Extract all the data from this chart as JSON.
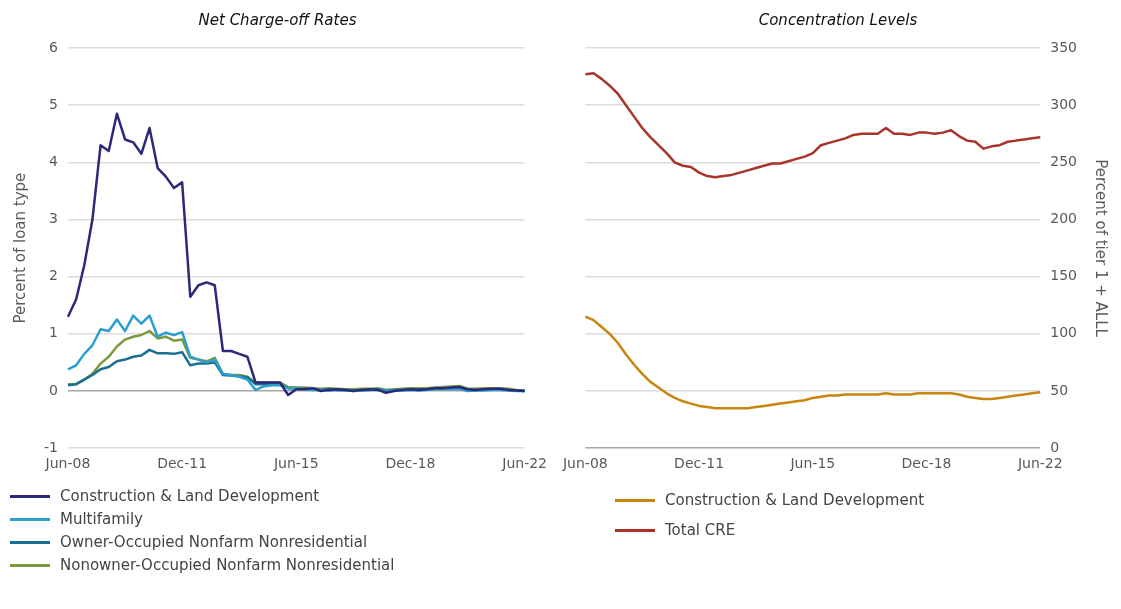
{
  "chart_data": [
    {
      "type": "line",
      "title": "Net Charge-off Rates",
      "ylabel": "Percent of loan type",
      "categories": [
        "Jun-08",
        null,
        null,
        null,
        null,
        null,
        null,
        null,
        null,
        null,
        null,
        null,
        null,
        null,
        "Dec-11",
        null,
        null,
        null,
        null,
        null,
        null,
        null,
        null,
        null,
        null,
        null,
        null,
        null,
        "Jun-15",
        null,
        null,
        null,
        null,
        null,
        null,
        null,
        null,
        null,
        null,
        null,
        null,
        null,
        "Dec-18",
        null,
        null,
        null,
        null,
        null,
        null,
        null,
        null,
        null,
        null,
        null,
        null,
        null,
        "Jun-22"
      ],
      "ylim": [
        -1,
        6
      ],
      "yticks": [
        -1,
        0,
        1,
        2,
        3,
        4,
        5,
        6
      ],
      "grid": "y",
      "legend": "bottom",
      "marker": "none",
      "series": [
        {
          "name": "Construction & Land Development",
          "color": "#2b2a7a",
          "values": [
            1.3,
            1.6,
            2.2,
            3.0,
            4.3,
            4.2,
            4.85,
            4.4,
            4.35,
            4.15,
            4.6,
            3.9,
            3.75,
            3.55,
            3.65,
            1.65,
            1.85,
            1.9,
            1.85,
            0.7,
            0.7,
            0.65,
            0.6,
            0.15,
            0.15,
            0.15,
            0.15,
            -0.07,
            0.03,
            0.03,
            0.05,
            0.0,
            0.02,
            0.03,
            0.02,
            0.0,
            0.02,
            0.03,
            0.02,
            -0.03,
            0.0,
            0.02,
            0.03,
            0.02,
            0.03,
            0.05,
            0.05,
            0.06,
            0.07,
            0.03,
            0.02,
            0.03,
            0.04,
            0.04,
            0.02,
            0.01,
            0.0
          ]
        },
        {
          "name": "Multifamily",
          "color": "#2a9fd0",
          "values": [
            0.38,
            0.45,
            0.65,
            0.8,
            1.08,
            1.05,
            1.25,
            1.05,
            1.32,
            1.18,
            1.32,
            0.95,
            1.02,
            0.98,
            1.03,
            0.6,
            0.55,
            0.5,
            0.55,
            0.3,
            0.28,
            0.25,
            0.2,
            0.02,
            0.08,
            0.1,
            0.1,
            0.05,
            0.05,
            0.03,
            0.02,
            0.02,
            0.01,
            0.02,
            0.01,
            0.0,
            0.01,
            0.02,
            0.02,
            0.0,
            0.01,
            0.01,
            0.02,
            0.01,
            0.02,
            0.03,
            0.03,
            0.03,
            0.04,
            0.0,
            0.01,
            0.01,
            0.02,
            0.02,
            0.01,
            0.0,
            0.0
          ]
        },
        {
          "name": "Owner-Occupied Nonfarm Nonresidential",
          "color": "#1b6f92",
          "values": [
            0.1,
            0.12,
            0.2,
            0.28,
            0.38,
            0.42,
            0.52,
            0.55,
            0.6,
            0.62,
            0.72,
            0.66,
            0.66,
            0.65,
            0.68,
            0.45,
            0.48,
            0.48,
            0.5,
            0.28,
            0.27,
            0.26,
            0.24,
            0.12,
            0.12,
            0.12,
            0.12,
            0.05,
            0.04,
            0.04,
            0.03,
            0.02,
            0.03,
            0.02,
            0.02,
            0.01,
            0.02,
            0.02,
            0.03,
            0.01,
            0.02,
            0.02,
            0.03,
            0.03,
            0.03,
            0.04,
            0.05,
            0.05,
            0.06,
            0.02,
            0.02,
            0.03,
            0.03,
            0.03,
            0.02,
            0.01,
            0.0
          ]
        },
        {
          "name": "Nonowner-Occupied Nonfarm Nonresidential",
          "color": "#7c9a3c",
          "values": [
            0.12,
            0.12,
            0.2,
            0.3,
            0.48,
            0.6,
            0.78,
            0.9,
            0.95,
            0.98,
            1.05,
            0.92,
            0.95,
            0.88,
            0.9,
            0.58,
            0.55,
            0.52,
            0.58,
            0.3,
            0.28,
            0.28,
            0.25,
            0.15,
            0.15,
            0.15,
            0.15,
            0.07,
            0.06,
            0.06,
            0.05,
            0.04,
            0.05,
            0.04,
            0.03,
            0.03,
            0.04,
            0.04,
            0.05,
            0.02,
            0.03,
            0.04,
            0.05,
            0.05,
            0.05,
            0.06,
            0.07,
            0.08,
            0.09,
            0.04,
            0.04,
            0.05,
            0.05,
            0.05,
            0.04,
            0.02,
            0.01
          ]
        }
      ]
    },
    {
      "type": "line",
      "title": "Concentration Levels",
      "y2label": "Percent of tier 1 + ALLL",
      "categories": [
        "Jun-08",
        null,
        null,
        null,
        null,
        null,
        null,
        null,
        null,
        null,
        null,
        null,
        null,
        null,
        "Dec-11",
        null,
        null,
        null,
        null,
        null,
        null,
        null,
        null,
        null,
        null,
        null,
        null,
        null,
        "Jun-15",
        null,
        null,
        null,
        null,
        null,
        null,
        null,
        null,
        null,
        null,
        null,
        null,
        null,
        "Dec-18",
        null,
        null,
        null,
        null,
        null,
        null,
        null,
        null,
        null,
        null,
        null,
        null,
        null,
        "Jun-22"
      ],
      "y2lim": [
        0,
        350
      ],
      "y2ticks": [
        0,
        50,
        100,
        150,
        200,
        250,
        300,
        350
      ],
      "grid": "y",
      "legend": "bottom",
      "marker": "none",
      "series": [
        {
          "name": "Construction & Land Development",
          "color": "#c8850f",
          "axis": "y2",
          "values": [
            115,
            112,
            106,
            100,
            92,
            82,
            73,
            65,
            58,
            53,
            48,
            44,
            41,
            39,
            37,
            36,
            35,
            35,
            35,
            35,
            35,
            36,
            37,
            38,
            39,
            40,
            41,
            42,
            44,
            45,
            46,
            46,
            47,
            47,
            47,
            47,
            47,
            48,
            47,
            47,
            47,
            48,
            48,
            48,
            48,
            48,
            47,
            45,
            44,
            43,
            43,
            44,
            45,
            46,
            47,
            48,
            49
          ]
        },
        {
          "name": "Total CRE",
          "color": "#a8352a",
          "axis": "y2",
          "values": [
            327,
            328,
            323,
            317,
            310,
            300,
            290,
            280,
            272,
            265,
            258,
            250,
            247,
            246,
            241,
            238,
            237,
            238,
            239,
            241,
            243,
            245,
            247,
            249,
            249,
            251,
            253,
            255,
            258,
            265,
            267,
            269,
            271,
            274,
            275,
            275,
            275,
            280,
            275,
            275,
            274,
            276,
            276,
            275,
            276,
            278,
            273,
            269,
            268,
            262,
            264,
            265,
            268,
            269,
            270,
            271,
            272
          ]
        }
      ]
    }
  ]
}
